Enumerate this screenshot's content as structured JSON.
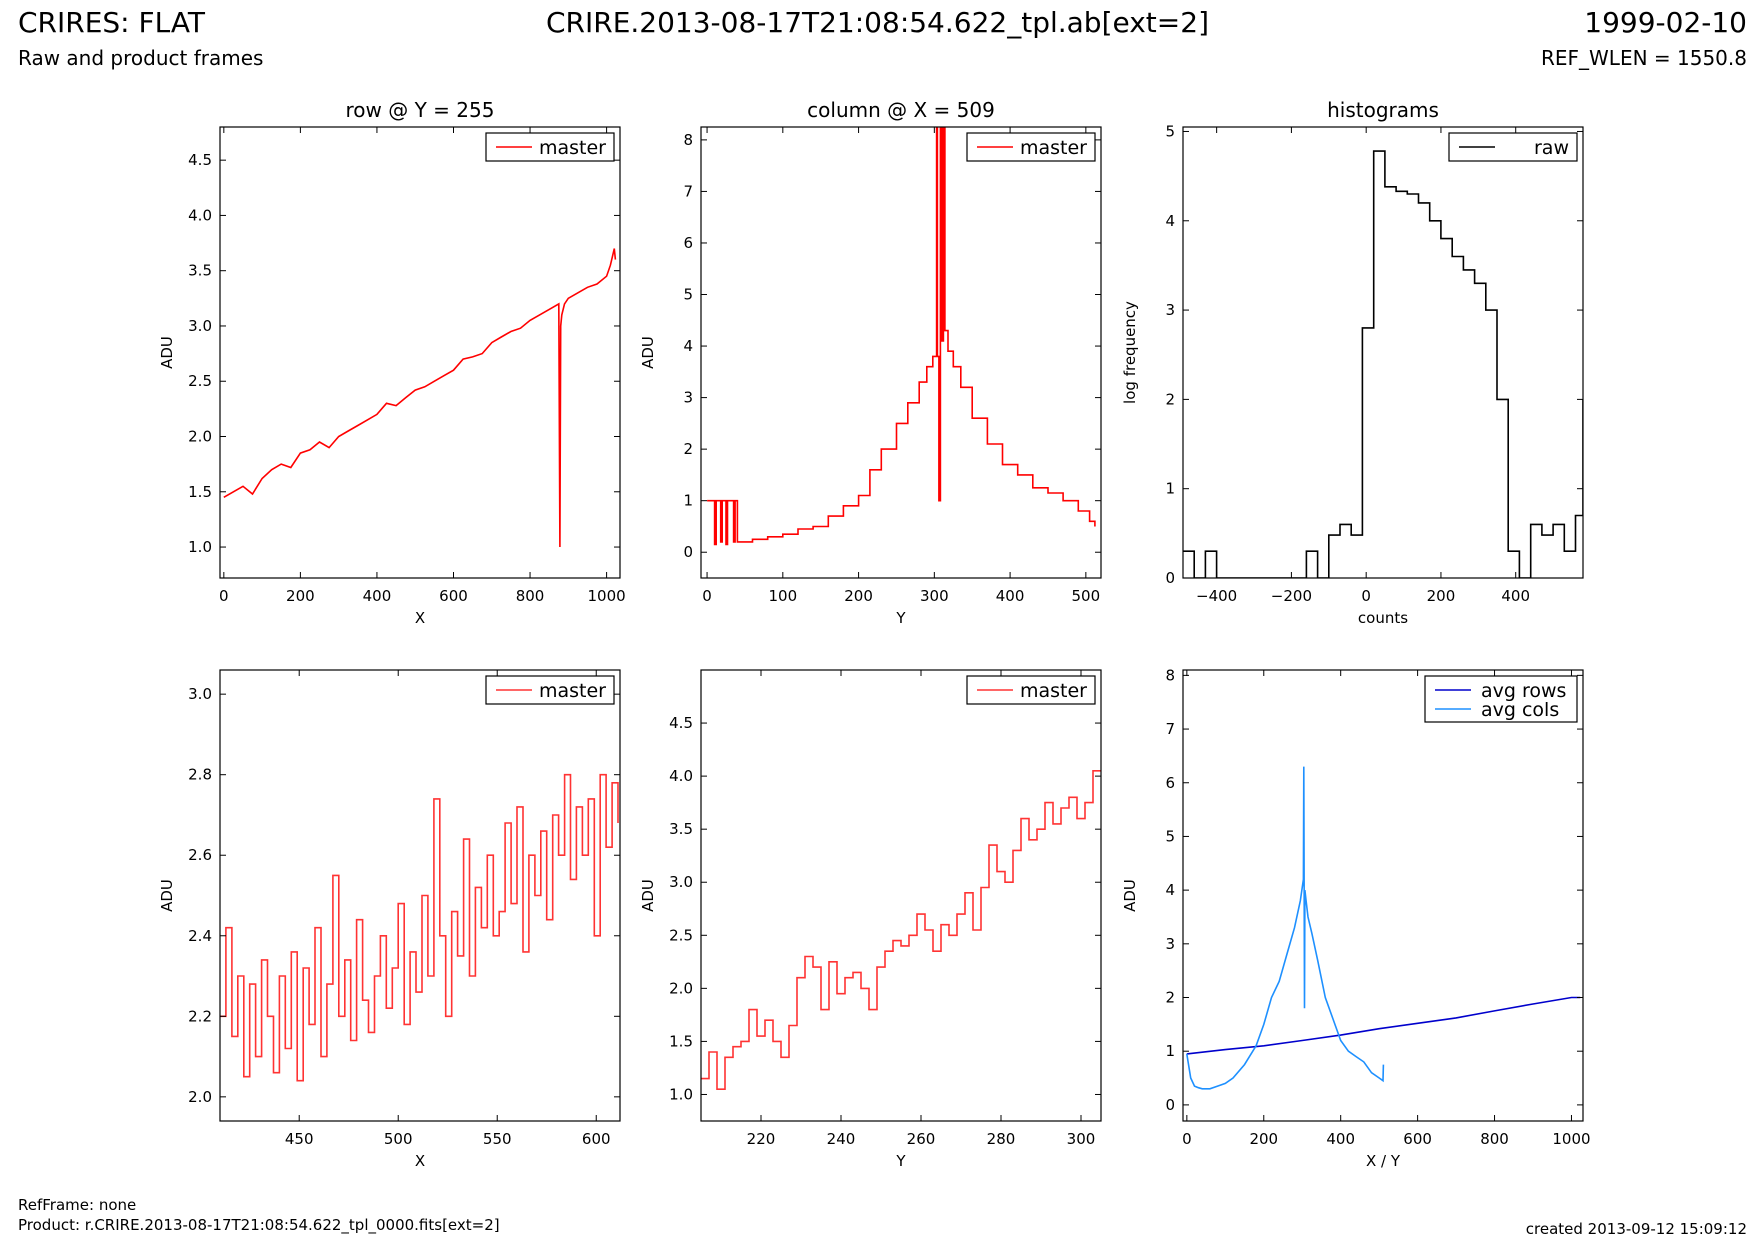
{
  "header": {
    "title_left": "CRIRES: FLAT",
    "title_center": "CRIRE.2013-08-17T21:08:54.622_tpl.ab[ext=2]",
    "title_right": "1999-02-10",
    "subtitle_left": "Raw and product frames",
    "subtitle_right": "REF_WLEN = 1550.8"
  },
  "footer": {
    "refframe": "RefFrame: none",
    "product": "Product: r.CRIRE.2013-08-17T21:08:54.622_tpl_0000.fits[ext=2]",
    "created": "created 2013-09-12 15:09:12"
  },
  "colors": {
    "master": "#ff0000",
    "master_zoom": "#ff3333",
    "raw": "#000000",
    "avg_rows": "#0000cc",
    "avg_cols": "#1e90ff"
  },
  "chart_data": [
    {
      "id": "row-full",
      "type": "line",
      "title": "row @ Y = 255",
      "xlabel": "X",
      "ylabel": "ADU",
      "xlim": [
        -10,
        1035
      ],
      "ylim": [
        0.72,
        4.8
      ],
      "xticks": [
        0,
        200,
        400,
        600,
        800,
        1000
      ],
      "yticks": [
        1.0,
        1.5,
        2.0,
        2.5,
        3.0,
        3.5,
        4.0,
        4.5
      ],
      "legend": "top-right",
      "series": [
        {
          "name": "master",
          "color": "#ff0000",
          "step": false,
          "x": [
            0,
            25,
            50,
            75,
            100,
            125,
            150,
            175,
            200,
            225,
            250,
            275,
            300,
            325,
            350,
            375,
            400,
            425,
            450,
            475,
            500,
            525,
            550,
            575,
            600,
            625,
            650,
            675,
            700,
            725,
            750,
            775,
            800,
            825,
            850,
            875,
            878,
            880,
            883,
            890,
            900,
            925,
            950,
            975,
            1000,
            1010,
            1020,
            1023
          ],
          "y": [
            1.45,
            1.5,
            1.55,
            1.48,
            1.62,
            1.7,
            1.75,
            1.72,
            1.85,
            1.88,
            1.95,
            1.9,
            2.0,
            2.05,
            2.1,
            2.15,
            2.2,
            2.3,
            2.28,
            2.35,
            2.42,
            2.45,
            2.5,
            2.55,
            2.6,
            2.7,
            2.72,
            2.75,
            2.85,
            2.9,
            2.95,
            2.98,
            3.05,
            3.1,
            3.15,
            3.2,
            1.0,
            3.0,
            3.1,
            3.2,
            3.25,
            3.3,
            3.35,
            3.38,
            3.45,
            3.55,
            3.7,
            3.6
          ]
        }
      ]
    },
    {
      "id": "col-full",
      "type": "line",
      "title": "column @ X = 509",
      "xlabel": "Y",
      "ylabel": "ADU",
      "xlim": [
        -8,
        520
      ],
      "ylim": [
        -0.5,
        8.25
      ],
      "xticks": [
        0,
        100,
        200,
        300,
        400,
        500
      ],
      "yticks": [
        0,
        1,
        2,
        3,
        4,
        5,
        6,
        7,
        8
      ],
      "legend": "top-right",
      "series": [
        {
          "name": "master",
          "color": "#ff0000",
          "step": true,
          "x": [
            0,
            2,
            10,
            12,
            18,
            20,
            25,
            27,
            35,
            37,
            40,
            42,
            50,
            60,
            80,
            100,
            120,
            140,
            160,
            180,
            200,
            215,
            230,
            250,
            265,
            280,
            290,
            298,
            303,
            304,
            306,
            308,
            310,
            312,
            314,
            318,
            325,
            335,
            350,
            370,
            390,
            410,
            430,
            450,
            470,
            490,
            505,
            512
          ],
          "y": [
            1.0,
            1.0,
            0.15,
            1.0,
            0.2,
            1.0,
            0.15,
            1.0,
            0.2,
            1.0,
            0.2,
            0.2,
            0.2,
            0.25,
            0.3,
            0.35,
            0.45,
            0.5,
            0.7,
            0.9,
            1.1,
            1.6,
            2.0,
            2.5,
            2.9,
            3.3,
            3.6,
            3.8,
            8.3,
            3.8,
            1.0,
            8.3,
            4.1,
            8.3,
            4.3,
            3.9,
            3.6,
            3.2,
            2.6,
            2.1,
            1.7,
            1.5,
            1.25,
            1.15,
            1.0,
            0.8,
            0.6,
            0.5
          ]
        }
      ]
    },
    {
      "id": "hist",
      "type": "line",
      "title": "histograms",
      "xlabel": "counts",
      "ylabel": "log frequency",
      "xlim": [
        -490,
        580
      ],
      "ylim": [
        0,
        5.05
      ],
      "xticks": [
        -400,
        -200,
        0,
        200,
        400
      ],
      "xticklabels": [
        "−400",
        "−200",
        "0",
        "200",
        "400"
      ],
      "yticks": [
        0,
        1,
        2,
        3,
        4,
        5
      ],
      "legend": "top-right",
      "series": [
        {
          "name": "raw",
          "color": "#000000",
          "step": true,
          "x": [
            -490,
            -460,
            -430,
            -400,
            -370,
            -340,
            -310,
            -280,
            -250,
            -220,
            -190,
            -160,
            -130,
            -100,
            -70,
            -40,
            -10,
            20,
            50,
            80,
            110,
            140,
            170,
            200,
            230,
            260,
            290,
            320,
            350,
            380,
            410,
            440,
            470,
            500,
            530,
            560,
            580
          ],
          "y": [
            0.3,
            0,
            0.3,
            0,
            0,
            0,
            0,
            0,
            0,
            0,
            0,
            0.3,
            0,
            0.48,
            0.6,
            0.48,
            2.8,
            4.78,
            4.38,
            4.33,
            4.3,
            4.2,
            4.0,
            3.8,
            3.6,
            3.45,
            3.3,
            3.0,
            2.0,
            0.3,
            0,
            0.6,
            0.48,
            0.6,
            0.3,
            0.7,
            2.0
          ]
        }
      ]
    },
    {
      "id": "row-zoom",
      "type": "line",
      "title": "",
      "xlabel": "X",
      "ylabel": "ADU",
      "xlim": [
        410,
        612
      ],
      "ylim": [
        1.94,
        3.06
      ],
      "xticks": [
        450,
        500,
        550,
        600
      ],
      "yticks": [
        2.0,
        2.2,
        2.4,
        2.6,
        2.8,
        3.0
      ],
      "yticklabels": [
        "2.0",
        "2.2",
        "2.4",
        "2.6",
        "2.8",
        "3.0"
      ],
      "legend": "top-right",
      "series": [
        {
          "name": "master",
          "color": "#ff3333",
          "step": true,
          "x": [
            410,
            413,
            416,
            419,
            422,
            425,
            428,
            431,
            434,
            437,
            440,
            443,
            446,
            449,
            452,
            455,
            458,
            461,
            464,
            467,
            470,
            473,
            476,
            479,
            482,
            485,
            488,
            491,
            494,
            497,
            500,
            503,
            506,
            509,
            512,
            515,
            518,
            521,
            524,
            527,
            530,
            533,
            536,
            539,
            542,
            545,
            548,
            551,
            554,
            557,
            560,
            563,
            566,
            569,
            572,
            575,
            578,
            581,
            584,
            587,
            590,
            593,
            596,
            599,
            602,
            605,
            608,
            611
          ],
          "y": [
            2.2,
            2.42,
            2.15,
            2.3,
            2.05,
            2.28,
            2.1,
            2.34,
            2.2,
            2.06,
            2.3,
            2.12,
            2.36,
            2.04,
            2.32,
            2.18,
            2.42,
            2.1,
            2.28,
            2.55,
            2.2,
            2.34,
            2.14,
            2.44,
            2.24,
            2.16,
            2.3,
            2.4,
            2.22,
            2.32,
            2.48,
            2.18,
            2.36,
            2.26,
            2.5,
            2.3,
            2.74,
            2.4,
            2.2,
            2.46,
            2.35,
            2.64,
            2.3,
            2.52,
            2.42,
            2.6,
            2.4,
            2.46,
            2.68,
            2.48,
            2.72,
            2.36,
            2.6,
            2.5,
            2.66,
            2.44,
            2.7,
            2.6,
            2.8,
            2.54,
            2.72,
            2.6,
            2.74,
            2.4,
            2.8,
            2.62,
            2.78,
            2.68
          ]
        }
      ]
    },
    {
      "id": "col-zoom",
      "type": "line",
      "title": "",
      "xlabel": "Y",
      "ylabel": "ADU",
      "xlim": [
        205,
        305
      ],
      "ylim": [
        0.75,
        5.0
      ],
      "xticks": [
        220,
        240,
        260,
        280,
        300
      ],
      "yticks": [
        1.0,
        1.5,
        2.0,
        2.5,
        3.0,
        3.5,
        4.0,
        4.5
      ],
      "legend": "top-right",
      "series": [
        {
          "name": "master",
          "color": "#ff3333",
          "step": true,
          "x": [
            205,
            207,
            209,
            211,
            213,
            215,
            217,
            219,
            221,
            223,
            225,
            227,
            229,
            231,
            233,
            235,
            237,
            239,
            241,
            243,
            245,
            247,
            249,
            251,
            253,
            255,
            257,
            259,
            261,
            263,
            265,
            267,
            269,
            271,
            273,
            275,
            277,
            279,
            281,
            283,
            285,
            287,
            289,
            291,
            293,
            295,
            297,
            299,
            301,
            303,
            305
          ],
          "y": [
            1.15,
            1.4,
            1.05,
            1.35,
            1.45,
            1.5,
            1.8,
            1.55,
            1.7,
            1.5,
            1.35,
            1.65,
            2.1,
            2.3,
            2.2,
            1.8,
            2.25,
            1.95,
            2.1,
            2.15,
            2.0,
            1.8,
            2.2,
            2.35,
            2.45,
            2.4,
            2.5,
            2.7,
            2.55,
            2.35,
            2.6,
            2.5,
            2.7,
            2.9,
            2.55,
            2.95,
            3.35,
            3.1,
            3.0,
            3.3,
            3.6,
            3.4,
            3.5,
            3.75,
            3.55,
            3.7,
            3.8,
            3.6,
            3.75,
            4.05,
            4.05
          ]
        }
      ]
    },
    {
      "id": "avg",
      "type": "line",
      "title": "",
      "xlabel": "X / Y",
      "ylabel": "ADU",
      "xlim": [
        -10,
        1030
      ],
      "ylim": [
        -0.3,
        8.1
      ],
      "xticks": [
        0,
        200,
        400,
        600,
        800,
        1000
      ],
      "yticks": [
        0,
        1,
        2,
        3,
        4,
        5,
        6,
        7,
        8
      ],
      "legend": "top-right",
      "series": [
        {
          "name": "avg rows",
          "color": "#0000cc",
          "step": false,
          "x": [
            0,
            100,
            200,
            300,
            400,
            500,
            600,
            700,
            800,
            900,
            1000,
            1023
          ],
          "y": [
            0.95,
            1.03,
            1.1,
            1.2,
            1.3,
            1.42,
            1.52,
            1.62,
            1.75,
            1.88,
            2.0,
            2.0
          ]
        },
        {
          "name": "avg cols",
          "color": "#1e90ff",
          "step": false,
          "x": [
            0,
            10,
            20,
            30,
            40,
            60,
            80,
            100,
            120,
            150,
            180,
            200,
            220,
            240,
            260,
            280,
            295,
            303,
            304,
            306,
            307,
            310,
            315,
            325,
            340,
            360,
            380,
            400,
            420,
            440,
            460,
            480,
            500,
            510,
            511
          ],
          "y": [
            0.95,
            0.5,
            0.35,
            0.32,
            0.3,
            0.3,
            0.35,
            0.4,
            0.5,
            0.75,
            1.1,
            1.5,
            2.0,
            2.3,
            2.8,
            3.3,
            3.8,
            4.2,
            6.3,
            1.8,
            4.0,
            3.8,
            3.5,
            3.2,
            2.7,
            2.0,
            1.6,
            1.2,
            1.0,
            0.9,
            0.8,
            0.6,
            0.5,
            0.45,
            0.75
          ]
        }
      ]
    }
  ]
}
